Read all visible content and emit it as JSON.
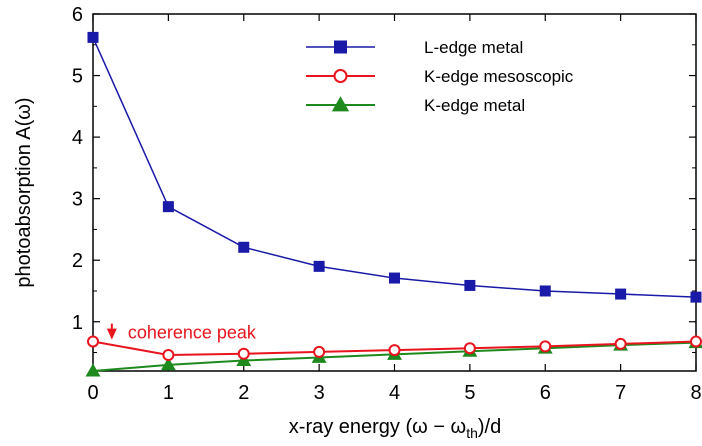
{
  "chart_data": {
    "type": "line",
    "xlabel": {
      "main": "x-ray energy (ω − ω",
      "sub": "th",
      "tail": ")/d"
    },
    "ylabel": "photoabsorption A(ω)",
    "xlim": [
      0,
      8
    ],
    "ylim": [
      0.2,
      6
    ],
    "xticks": [
      0,
      1,
      2,
      3,
      4,
      5,
      6,
      7,
      8
    ],
    "yticks": [
      1,
      2,
      3,
      4,
      5,
      6
    ],
    "grid": false,
    "legend_position": "top-right",
    "series": [
      {
        "name": "L-edge metal",
        "color": "#1a1aa8",
        "marker": "filled-square",
        "x": [
          0,
          1,
          2,
          3,
          4,
          5,
          6,
          7,
          8
        ],
        "y": [
          5.62,
          2.87,
          2.21,
          1.9,
          1.71,
          1.59,
          1.5,
          1.45,
          1.4
        ]
      },
      {
        "name": "K-edge mesoscopic",
        "color": "#e8141e",
        "marker": "open-circle",
        "x": [
          0,
          1,
          2,
          3,
          4,
          5,
          6,
          7,
          8
        ],
        "y": [
          0.68,
          0.46,
          0.48,
          0.51,
          0.54,
          0.57,
          0.6,
          0.64,
          0.68
        ]
      },
      {
        "name": "K-edge metal",
        "color": "#1e8a1e",
        "marker": "filled-triangle",
        "x": [
          0,
          1,
          2,
          3,
          4,
          5,
          6,
          7,
          8
        ],
        "y": [
          0.2,
          0.3,
          0.37,
          0.42,
          0.47,
          0.52,
          0.57,
          0.62,
          0.66
        ]
      }
    ],
    "annotation": {
      "text": "coherence peak",
      "color": "#e8141e",
      "arrow_from_y": 0.97,
      "arrow_to_y": 0.71,
      "x": 0.25
    }
  }
}
